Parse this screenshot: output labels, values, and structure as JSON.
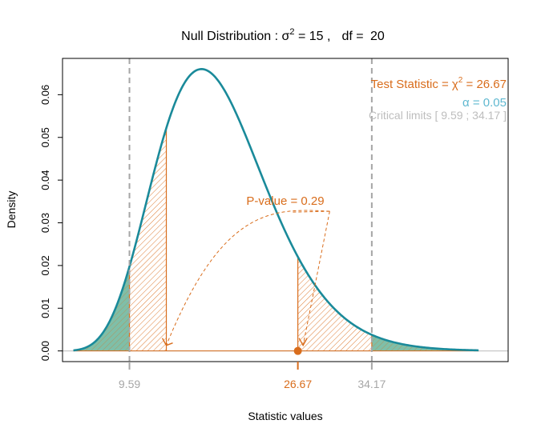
{
  "chart_data": {
    "type": "area",
    "title": {
      "prefix": "Null Distribution : ",
      "sigma": "σ",
      "sup": "2",
      "eq": " = 15 ,",
      "df_label": "df = ",
      "df_value": "20"
    },
    "xlabel": "Statistic values",
    "ylabel": "Density",
    "xlim": [
      2.8,
      48.0
    ],
    "ylim": [
      -0.0025,
      0.0685
    ],
    "yticks": [
      "0.00",
      "0.01",
      "0.02",
      "0.03",
      "0.04",
      "0.05",
      "0.06"
    ],
    "ytick_values": [
      0,
      0.01,
      0.02,
      0.03,
      0.04,
      0.05,
      0.06
    ],
    "xtick_labels": [
      {
        "value": 9.59,
        "text": "9.59",
        "color": "#a6a6a6"
      },
      {
        "value": 26.67,
        "text": "26.67",
        "color": "#d96d1c"
      },
      {
        "value": 34.17,
        "text": "34.17",
        "color": "#a6a6a6"
      }
    ],
    "distribution": {
      "name": "chi-square",
      "df": 20,
      "sigma2": 15,
      "x_range": [
        3.9,
        45.0
      ],
      "peak_x": 16.9,
      "peak_density": 0.066
    },
    "critical_limits": [
      9.59,
      34.17
    ],
    "test_statistic": 26.67,
    "alpha": 0.05,
    "p_value": 0.29,
    "pvalue_regions": [
      [
        9.59,
        13.33
      ],
      [
        26.67,
        34.17
      ]
    ],
    "annotations": {
      "test_stat_prefix": "Test Statistic = ",
      "chi": "χ",
      "sup": "2",
      "test_stat_value": " = 26.67",
      "alpha_text": "α = 0.05",
      "critical_text": "Critical limits  [ 9.59 ; 34.17 ]",
      "pvalue_text": "P-value = 0.29"
    },
    "colors": {
      "curve": "#1a8a9a",
      "tail_fill": "#7fbfa8",
      "hatch": "#d96d1c",
      "critical_line": "#a6a6a6",
      "alpha_text": "#5fb8d0",
      "critical_text": "#bdbdbd",
      "axis": "#000000",
      "baseline": "#c8c8c8"
    }
  }
}
